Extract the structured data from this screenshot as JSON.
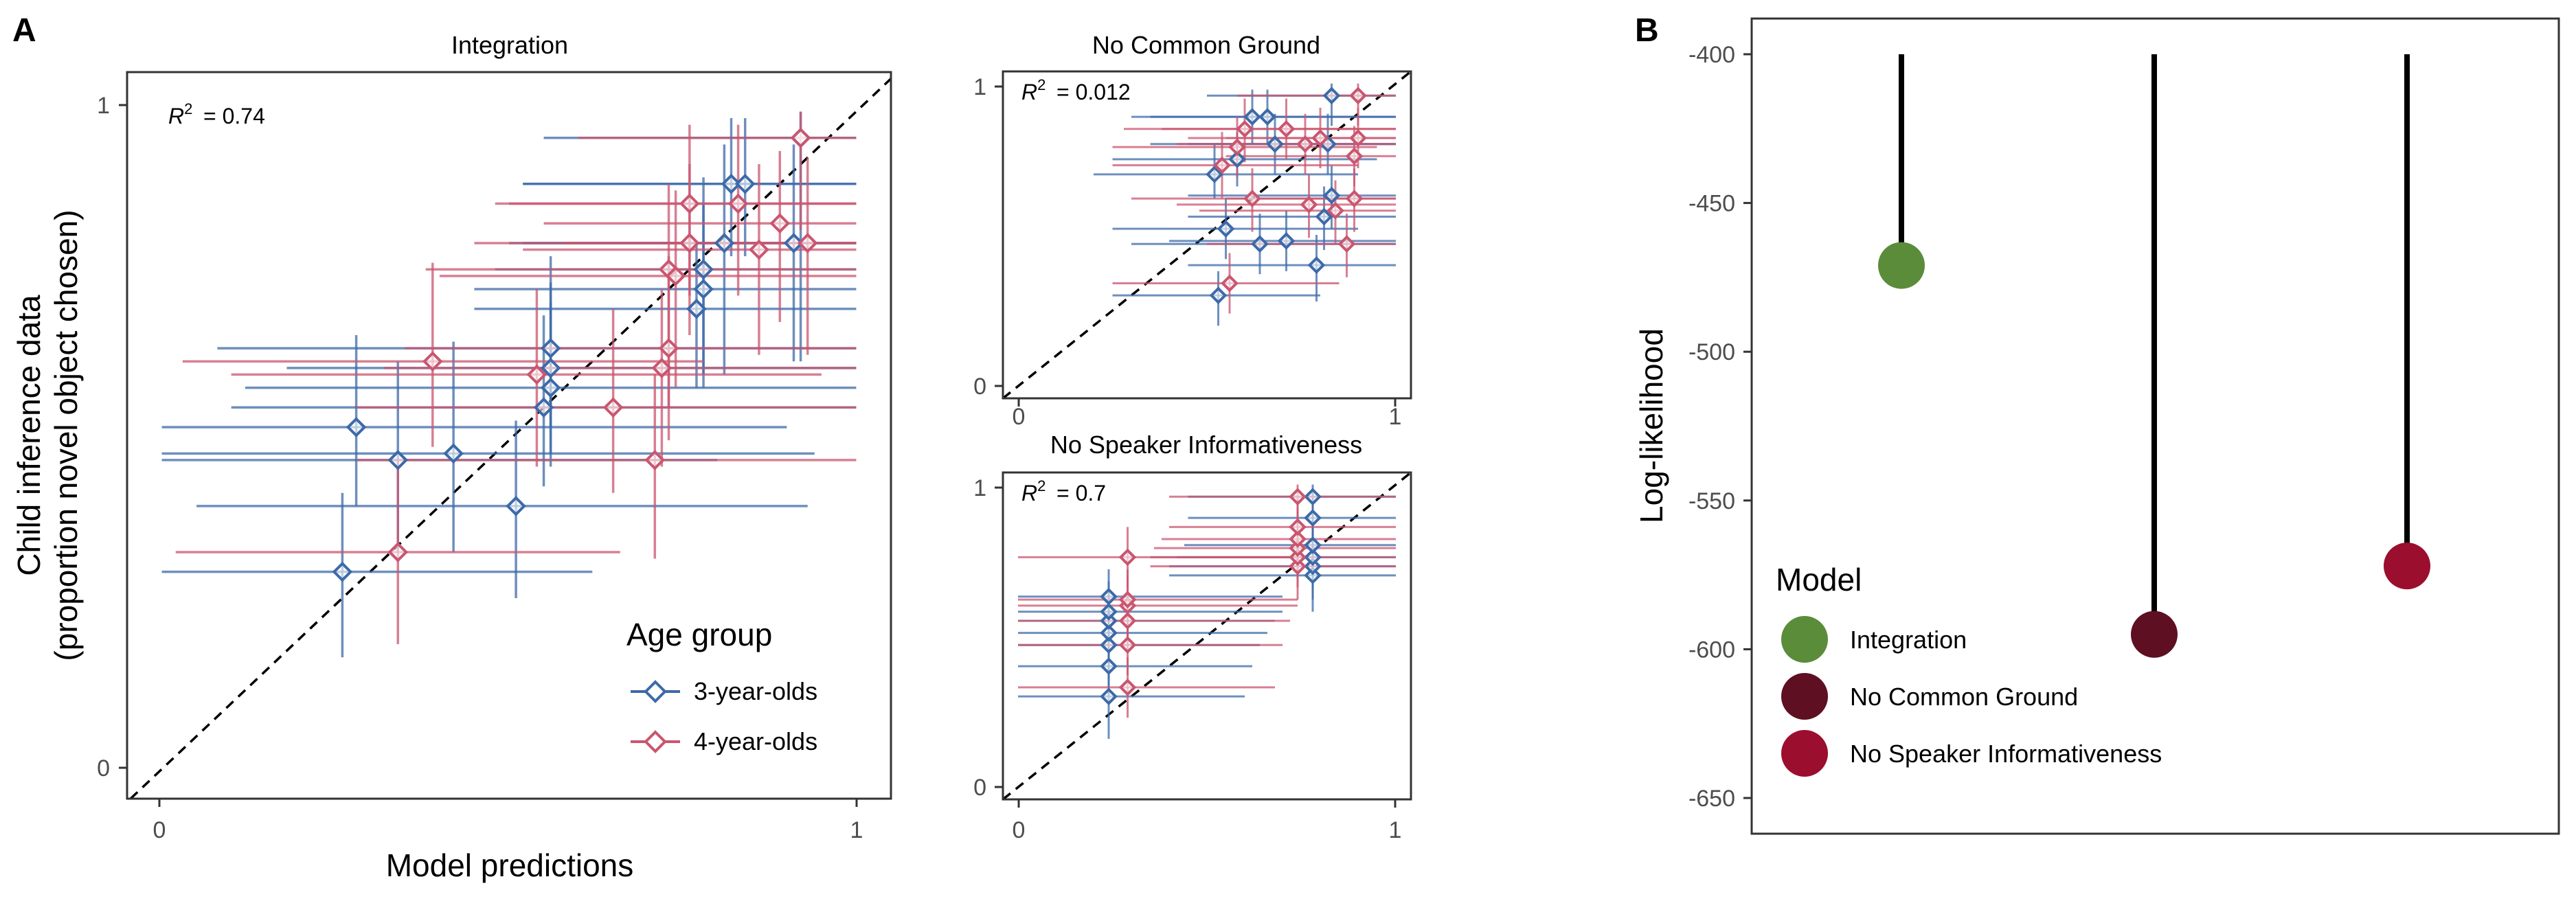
{
  "panel_labels": {
    "a": "A",
    "b": "B"
  },
  "legend_a": {
    "title": "Age group",
    "items": [
      {
        "label": "3-year-olds",
        "color": "#3d6aa8"
      },
      {
        "label": "4-year-olds",
        "color": "#c9566f"
      }
    ]
  },
  "legend_b": {
    "title": "Model",
    "items": [
      {
        "label": "Integration",
        "color": "#5b8c3a"
      },
      {
        "label": "No Common Ground",
        "color": "#5e0f22"
      },
      {
        "label": "No Speaker Informativeness",
        "color": "#9b0e2e"
      }
    ]
  },
  "chart_data": [
    {
      "id": "integration",
      "type": "scatter",
      "title": "Integration",
      "xlabel": "Model predictions",
      "ylabel": [
        "Child inference data",
        "(proportion novel object chosen)"
      ],
      "xlim": [
        -0.05,
        1.05
      ],
      "ylim": [
        -0.045,
        1.06
      ],
      "xticks": [
        0,
        1
      ],
      "yticks": [
        0,
        1
      ],
      "r2_label": "= 0.74",
      "grid": false,
      "reference_line": "y = x (dashed)",
      "series": [
        {
          "name": "3-year-olds",
          "color": "#3d6aa8",
          "points": [
            {
              "x": 0.26,
              "y": 0.3,
              "xlo": 0.0,
              "xhi": 0.62,
              "ylo": 0.17,
              "yhi": 0.42
            },
            {
              "x": 0.28,
              "y": 0.52,
              "xlo": 0.0,
              "xhi": 0.9,
              "ylo": 0.4,
              "yhi": 0.66
            },
            {
              "x": 0.34,
              "y": 0.47,
              "xlo": 0.0,
              "xhi": 0.8,
              "ylo": 0.33,
              "yhi": 0.62
            },
            {
              "x": 0.42,
              "y": 0.48,
              "xlo": 0.0,
              "xhi": 0.94,
              "ylo": 0.33,
              "yhi": 0.65
            },
            {
              "x": 0.51,
              "y": 0.4,
              "xlo": 0.05,
              "xhi": 0.93,
              "ylo": 0.26,
              "yhi": 0.53
            },
            {
              "x": 0.55,
              "y": 0.55,
              "xlo": 0.1,
              "xhi": 1.0,
              "ylo": 0.43,
              "yhi": 0.69
            },
            {
              "x": 0.56,
              "y": 0.58,
              "xlo": 0.12,
              "xhi": 1.0,
              "ylo": 0.46,
              "yhi": 0.71
            },
            {
              "x": 0.56,
              "y": 0.61,
              "xlo": 0.18,
              "xhi": 1.0,
              "ylo": 0.48,
              "yhi": 0.74
            },
            {
              "x": 0.56,
              "y": 0.64,
              "xlo": 0.08,
              "xhi": 1.0,
              "ylo": 0.52,
              "yhi": 0.78
            },
            {
              "x": 0.77,
              "y": 0.7,
              "xlo": 0.45,
              "xhi": 1.0,
              "ylo": 0.58,
              "yhi": 0.8
            },
            {
              "x": 0.78,
              "y": 0.73,
              "xlo": 0.45,
              "xhi": 1.0,
              "ylo": 0.58,
              "yhi": 0.86
            },
            {
              "x": 0.78,
              "y": 0.76,
              "xlo": 0.48,
              "xhi": 1.0,
              "ylo": 0.6,
              "yhi": 0.9
            },
            {
              "x": 0.81,
              "y": 0.8,
              "xlo": 0.5,
              "xhi": 1.0,
              "ylo": 0.6,
              "yhi": 0.95
            },
            {
              "x": 0.82,
              "y": 0.89,
              "xlo": 0.52,
              "xhi": 1.0,
              "ylo": 0.78,
              "yhi": 0.99
            },
            {
              "x": 0.84,
              "y": 0.89,
              "xlo": 0.52,
              "xhi": 1.0,
              "ylo": 0.78,
              "yhi": 0.99
            },
            {
              "x": 0.91,
              "y": 0.8,
              "xlo": 0.52,
              "xhi": 1.0,
              "ylo": 0.62,
              "yhi": 0.95
            },
            {
              "x": 0.92,
              "y": 0.96,
              "xlo": 0.55,
              "xhi": 1.0,
              "ylo": 0.62,
              "yhi": 1.0
            }
          ]
        },
        {
          "name": "4-year-olds",
          "color": "#c9566f",
          "points": [
            {
              "x": 0.34,
              "y": 0.33,
              "xlo": 0.02,
              "xhi": 0.66,
              "ylo": 0.19,
              "yhi": 0.47
            },
            {
              "x": 0.39,
              "y": 0.62,
              "xlo": 0.03,
              "xhi": 0.78,
              "ylo": 0.49,
              "yhi": 0.77
            },
            {
              "x": 0.54,
              "y": 0.6,
              "xlo": 0.1,
              "xhi": 0.95,
              "ylo": 0.46,
              "yhi": 0.73
            },
            {
              "x": 0.65,
              "y": 0.55,
              "xlo": 0.28,
              "xhi": 1.0,
              "ylo": 0.42,
              "yhi": 0.7
            },
            {
              "x": 0.71,
              "y": 0.47,
              "xlo": 0.28,
              "xhi": 1.0,
              "ylo": 0.32,
              "yhi": 0.6
            },
            {
              "x": 0.72,
              "y": 0.61,
              "xlo": 0.32,
              "xhi": 1.0,
              "ylo": 0.46,
              "yhi": 0.73
            },
            {
              "x": 0.73,
              "y": 0.64,
              "xlo": 0.35,
              "xhi": 1.0,
              "ylo": 0.5,
              "yhi": 0.78
            },
            {
              "x": 0.73,
              "y": 0.76,
              "xlo": 0.38,
              "xhi": 1.0,
              "ylo": 0.55,
              "yhi": 0.89
            },
            {
              "x": 0.74,
              "y": 0.75,
              "xlo": 0.4,
              "xhi": 1.0,
              "ylo": 0.58,
              "yhi": 0.88
            },
            {
              "x": 0.76,
              "y": 0.8,
              "xlo": 0.45,
              "xhi": 1.0,
              "ylo": 0.66,
              "yhi": 0.92
            },
            {
              "x": 0.76,
              "y": 0.86,
              "xlo": 0.48,
              "xhi": 1.0,
              "ylo": 0.72,
              "yhi": 0.98
            },
            {
              "x": 0.83,
              "y": 0.86,
              "xlo": 0.5,
              "xhi": 1.0,
              "ylo": 0.72,
              "yhi": 0.98
            },
            {
              "x": 0.86,
              "y": 0.79,
              "xlo": 0.52,
              "xhi": 1.0,
              "ylo": 0.63,
              "yhi": 0.92
            },
            {
              "x": 0.89,
              "y": 0.83,
              "xlo": 0.55,
              "xhi": 1.0,
              "ylo": 0.68,
              "yhi": 0.94
            },
            {
              "x": 0.93,
              "y": 0.8,
              "xlo": 0.58,
              "xhi": 1.0,
              "ylo": 0.63,
              "yhi": 0.93
            },
            {
              "x": 0.92,
              "y": 0.96,
              "xlo": 0.6,
              "xhi": 1.0,
              "ylo": 0.82,
              "yhi": 1.0
            }
          ]
        }
      ]
    },
    {
      "id": "no-common-ground",
      "type": "scatter",
      "title": "No Common Ground",
      "xlabel": "",
      "ylabel": "",
      "xlim": [
        -0.04,
        1.04
      ],
      "ylim": [
        -0.04,
        1.04
      ],
      "xticks": [
        0,
        1
      ],
      "yticks": [
        0,
        1
      ],
      "r2_label": "= 0.012",
      "grid": false,
      "reference_line": "y = x (dashed)",
      "series": [
        {
          "name": "3-year-olds",
          "color": "#3d6aa8",
          "points": [
            {
              "x": 0.52,
              "y": 0.7,
              "xlo": 0.2,
              "xhi": 0.9,
              "ylo": 0.62,
              "yhi": 0.8
            },
            {
              "x": 0.53,
              "y": 0.3,
              "xlo": 0.25,
              "xhi": 0.8,
              "ylo": 0.2,
              "yhi": 0.38
            },
            {
              "x": 0.55,
              "y": 0.52,
              "xlo": 0.25,
              "xhi": 0.9,
              "ylo": 0.42,
              "yhi": 0.62
            },
            {
              "x": 0.58,
              "y": 0.75,
              "xlo": 0.25,
              "xhi": 0.95,
              "ylo": 0.66,
              "yhi": 0.84
            },
            {
              "x": 0.62,
              "y": 0.89,
              "xlo": 0.3,
              "xhi": 1.0,
              "ylo": 0.8,
              "yhi": 0.98
            },
            {
              "x": 0.64,
              "y": 0.47,
              "xlo": 0.3,
              "xhi": 1.0,
              "ylo": 0.37,
              "yhi": 0.57
            },
            {
              "x": 0.66,
              "y": 0.89,
              "xlo": 0.35,
              "xhi": 1.0,
              "ylo": 0.8,
              "yhi": 0.98
            },
            {
              "x": 0.68,
              "y": 0.8,
              "xlo": 0.35,
              "xhi": 1.0,
              "ylo": 0.7,
              "yhi": 0.9
            },
            {
              "x": 0.71,
              "y": 0.48,
              "xlo": 0.4,
              "xhi": 1.0,
              "ylo": 0.38,
              "yhi": 0.58
            },
            {
              "x": 0.79,
              "y": 0.4,
              "xlo": 0.45,
              "xhi": 1.0,
              "ylo": 0.28,
              "yhi": 0.5
            },
            {
              "x": 0.81,
              "y": 0.56,
              "xlo": 0.45,
              "xhi": 1.0,
              "ylo": 0.45,
              "yhi": 0.66
            },
            {
              "x": 0.82,
              "y": 0.8,
              "xlo": 0.45,
              "xhi": 1.0,
              "ylo": 0.7,
              "yhi": 0.9
            },
            {
              "x": 0.83,
              "y": 0.96,
              "xlo": 0.5,
              "xhi": 1.0,
              "ylo": 0.86,
              "yhi": 1.0
            },
            {
              "x": 0.83,
              "y": 0.63,
              "xlo": 0.45,
              "xhi": 1.0,
              "ylo": 0.52,
              "yhi": 0.73
            }
          ]
        },
        {
          "name": "4-year-olds",
          "color": "#c9566f",
          "points": [
            {
              "x": 0.54,
              "y": 0.73,
              "xlo": 0.25,
              "xhi": 0.9,
              "ylo": 0.62,
              "yhi": 0.84
            },
            {
              "x": 0.56,
              "y": 0.34,
              "xlo": 0.25,
              "xhi": 0.85,
              "ylo": 0.24,
              "yhi": 0.44
            },
            {
              "x": 0.58,
              "y": 0.79,
              "xlo": 0.25,
              "xhi": 0.95,
              "ylo": 0.69,
              "yhi": 0.89
            },
            {
              "x": 0.6,
              "y": 0.85,
              "xlo": 0.28,
              "xhi": 1.0,
              "ylo": 0.74,
              "yhi": 0.95
            },
            {
              "x": 0.62,
              "y": 0.62,
              "xlo": 0.3,
              "xhi": 1.0,
              "ylo": 0.51,
              "yhi": 0.72
            },
            {
              "x": 0.71,
              "y": 0.85,
              "xlo": 0.38,
              "xhi": 1.0,
              "ylo": 0.75,
              "yhi": 0.95
            },
            {
              "x": 0.76,
              "y": 0.8,
              "xlo": 0.42,
              "xhi": 1.0,
              "ylo": 0.7,
              "yhi": 0.9
            },
            {
              "x": 0.77,
              "y": 0.6,
              "xlo": 0.42,
              "xhi": 1.0,
              "ylo": 0.49,
              "yhi": 0.7
            },
            {
              "x": 0.8,
              "y": 0.82,
              "xlo": 0.45,
              "xhi": 1.0,
              "ylo": 0.72,
              "yhi": 0.92
            },
            {
              "x": 0.84,
              "y": 0.58,
              "xlo": 0.48,
              "xhi": 1.0,
              "ylo": 0.47,
              "yhi": 0.68
            },
            {
              "x": 0.87,
              "y": 0.47,
              "xlo": 0.5,
              "xhi": 1.0,
              "ylo": 0.36,
              "yhi": 0.57
            },
            {
              "x": 0.89,
              "y": 0.62,
              "xlo": 0.55,
              "xhi": 1.0,
              "ylo": 0.51,
              "yhi": 0.72
            },
            {
              "x": 0.89,
              "y": 0.76,
              "xlo": 0.55,
              "xhi": 1.0,
              "ylo": 0.66,
              "yhi": 0.86
            },
            {
              "x": 0.9,
              "y": 0.82,
              "xlo": 0.55,
              "xhi": 1.0,
              "ylo": 0.72,
              "yhi": 0.92
            },
            {
              "x": 0.9,
              "y": 0.96,
              "xlo": 0.58,
              "xhi": 1.0,
              "ylo": 0.86,
              "yhi": 1.0
            }
          ]
        }
      ]
    },
    {
      "id": "no-speaker-informativeness",
      "type": "scatter",
      "title": "No Speaker Informativeness",
      "xlabel": "",
      "ylabel": "",
      "xlim": [
        -0.04,
        1.04
      ],
      "ylim": [
        -0.04,
        1.04
      ],
      "xticks": [
        0,
        1
      ],
      "yticks": [
        0,
        1
      ],
      "r2_label": "= 0.7",
      "grid": false,
      "reference_line": "y = x (dashed)",
      "series": [
        {
          "name": "3-year-olds",
          "color": "#3d6aa8",
          "points": [
            {
              "x": 0.24,
              "y": 0.3,
              "xlo": 0.0,
              "xhi": 0.6,
              "ylo": 0.16,
              "yhi": 0.4
            },
            {
              "x": 0.24,
              "y": 0.4,
              "xlo": 0.0,
              "xhi": 0.62,
              "ylo": 0.3,
              "yhi": 0.5
            },
            {
              "x": 0.24,
              "y": 0.47,
              "xlo": 0.0,
              "xhi": 0.64,
              "ylo": 0.36,
              "yhi": 0.57
            },
            {
              "x": 0.24,
              "y": 0.51,
              "xlo": 0.0,
              "xhi": 0.66,
              "ylo": 0.4,
              "yhi": 0.61
            },
            {
              "x": 0.24,
              "y": 0.55,
              "xlo": 0.0,
              "xhi": 0.68,
              "ylo": 0.44,
              "yhi": 0.65
            },
            {
              "x": 0.24,
              "y": 0.58,
              "xlo": 0.0,
              "xhi": 0.7,
              "ylo": 0.48,
              "yhi": 0.68
            },
            {
              "x": 0.24,
              "y": 0.63,
              "xlo": 0.0,
              "xhi": 0.7,
              "ylo": 0.52,
              "yhi": 0.72
            },
            {
              "x": 0.78,
              "y": 0.7,
              "xlo": 0.4,
              "xhi": 1.0,
              "ylo": 0.58,
              "yhi": 0.8
            },
            {
              "x": 0.78,
              "y": 0.73,
              "xlo": 0.4,
              "xhi": 1.0,
              "ylo": 0.62,
              "yhi": 0.84
            },
            {
              "x": 0.78,
              "y": 0.76,
              "xlo": 0.42,
              "xhi": 1.0,
              "ylo": 0.66,
              "yhi": 0.86
            },
            {
              "x": 0.78,
              "y": 0.8,
              "xlo": 0.44,
              "xhi": 1.0,
              "ylo": 0.7,
              "yhi": 0.9
            },
            {
              "x": 0.78,
              "y": 0.89,
              "xlo": 0.45,
              "xhi": 1.0,
              "ylo": 0.8,
              "yhi": 0.98
            },
            {
              "x": 0.78,
              "y": 0.96,
              "xlo": 0.45,
              "xhi": 1.0,
              "ylo": 0.86,
              "yhi": 1.0
            }
          ]
        },
        {
          "name": "4-year-olds",
          "color": "#c9566f",
          "points": [
            {
              "x": 0.29,
              "y": 0.33,
              "xlo": 0.0,
              "xhi": 0.68,
              "ylo": 0.23,
              "yhi": 0.43
            },
            {
              "x": 0.29,
              "y": 0.47,
              "xlo": 0.0,
              "xhi": 0.7,
              "ylo": 0.37,
              "yhi": 0.57
            },
            {
              "x": 0.29,
              "y": 0.55,
              "xlo": 0.0,
              "xhi": 0.72,
              "ylo": 0.45,
              "yhi": 0.65
            },
            {
              "x": 0.29,
              "y": 0.6,
              "xlo": 0.0,
              "xhi": 0.74,
              "ylo": 0.5,
              "yhi": 0.7
            },
            {
              "x": 0.29,
              "y": 0.62,
              "xlo": 0.0,
              "xhi": 0.74,
              "ylo": 0.52,
              "yhi": 0.72
            },
            {
              "x": 0.29,
              "y": 0.76,
              "xlo": 0.0,
              "xhi": 0.76,
              "ylo": 0.66,
              "yhi": 0.86
            },
            {
              "x": 0.74,
              "y": 0.73,
              "xlo": 0.35,
              "xhi": 1.0,
              "ylo": 0.62,
              "yhi": 0.84
            },
            {
              "x": 0.74,
              "y": 0.76,
              "xlo": 0.35,
              "xhi": 1.0,
              "ylo": 0.66,
              "yhi": 0.86
            },
            {
              "x": 0.74,
              "y": 0.79,
              "xlo": 0.36,
              "xhi": 1.0,
              "ylo": 0.69,
              "yhi": 0.89
            },
            {
              "x": 0.74,
              "y": 0.82,
              "xlo": 0.38,
              "xhi": 1.0,
              "ylo": 0.72,
              "yhi": 0.92
            },
            {
              "x": 0.74,
              "y": 0.86,
              "xlo": 0.4,
              "xhi": 1.0,
              "ylo": 0.76,
              "yhi": 0.96
            },
            {
              "x": 0.74,
              "y": 0.96,
              "xlo": 0.4,
              "xhi": 1.0,
              "ylo": 0.86,
              "yhi": 1.0
            }
          ]
        }
      ]
    },
    {
      "id": "log-likelihood",
      "type": "lollipop",
      "title": "",
      "xlabel": "",
      "ylabel": "Log-likelihood",
      "ylim": [
        -662,
        -388
      ],
      "yticks": [
        -400,
        -450,
        -500,
        -550,
        -600,
        -650
      ],
      "baseline": -400,
      "grid": false,
      "legend_position": "left",
      "categories": [
        "Integration",
        "No Common Ground",
        "No Speaker Informativeness"
      ],
      "values": [
        -471,
        -595,
        -572
      ],
      "colors": [
        "#5b8c3a",
        "#5e0f22",
        "#9b0e2e"
      ]
    }
  ]
}
